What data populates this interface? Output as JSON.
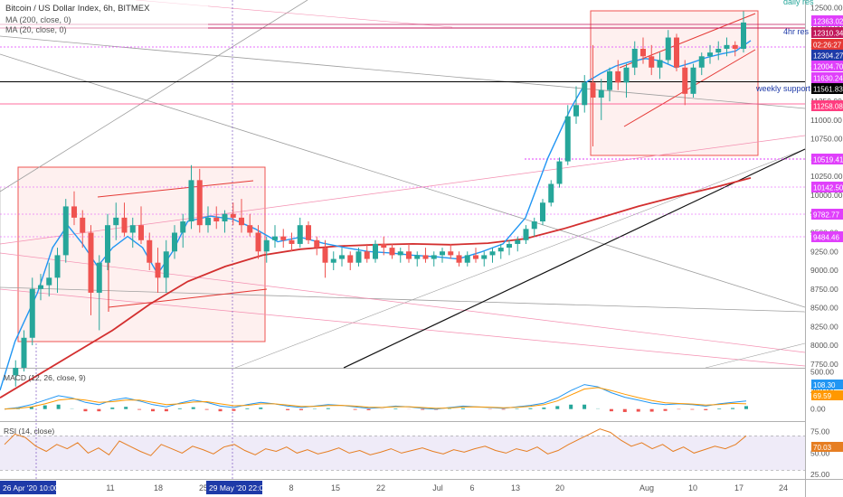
{
  "header": {
    "symbol_line": "Bitcoin / US Dollar Index, 6h, BITMEX",
    "ma200_label": "MA (200, close, 0)",
    "ma20_label": "MA (20, close, 0)"
  },
  "annotations": {
    "daily_res": "daily res",
    "hr4_res": "4hr res",
    "weekly_support": "weekly support"
  },
  "chart_data": {
    "type": "candlestick",
    "price_axis": {
      "ticks": [
        12500,
        12250,
        12000,
        11750,
        11500,
        11250,
        11000,
        10750,
        10500,
        10250,
        10000,
        9750,
        9500,
        9250,
        9000,
        8750,
        8500,
        8250,
        8000,
        7750
      ],
      "tick_labels": [
        "12500.00",
        "12250.00",
        "12000.00",
        "11750.00",
        "11500.00",
        "11250.00",
        "11000.00",
        "10750.00",
        "10500.00",
        "10250.00",
        "10000.00",
        "9750.00",
        "9500.00",
        "9250.00",
        "9000.00",
        "8750.00",
        "8500.00",
        "8250.00",
        "8000.00",
        "7750.00"
      ],
      "ylim": [
        7700,
        12600
      ]
    },
    "time_axis": {
      "labels": [
        "11",
        "18",
        "25",
        "8",
        "15",
        "22",
        "Jul",
        "6",
        "13",
        "20",
        "Aug",
        "10",
        "17",
        "24"
      ],
      "highlights": [
        {
          "label": "26 Apr '20  10:00"
        },
        {
          "label": "29 May '20  22:00"
        }
      ]
    },
    "price_tags": [
      {
        "value": "12363.02",
        "color": "#e040fb"
      },
      {
        "value": "12310.34",
        "color": "#c2185b"
      },
      {
        "value": "02:26:27",
        "color": "#e53935"
      },
      {
        "value": "12304.27",
        "color": "#1e3aa8"
      },
      {
        "value": "12004.70",
        "color": "#e040fb"
      },
      {
        "value": "11630.24",
        "color": "#e040fb"
      },
      {
        "value": "11561.83",
        "color": "#000000"
      },
      {
        "value": "11258.08",
        "color": "#ff3d7f"
      },
      {
        "value": "10519.41",
        "color": "#e040fb"
      },
      {
        "value": "10142.50",
        "color": "#e040fb"
      },
      {
        "value": "9782.77",
        "color": "#e040fb"
      },
      {
        "value": "9484.46",
        "color": "#e040fb"
      }
    ],
    "series": [
      {
        "name": "MA (200, close, 0)",
        "color": "#d32f2f",
        "x": [
          0,
          5,
          10,
          15,
          20,
          25,
          30,
          35,
          40,
          45,
          50,
          55,
          60,
          65,
          70,
          75,
          80,
          85,
          90,
          95,
          100
        ],
        "values": [
          7300,
          7600,
          7900,
          8200,
          8550,
          8850,
          9050,
          9200,
          9280,
          9320,
          9340,
          9350,
          9340,
          9360,
          9420,
          9550,
          9700,
          9850,
          9980,
          10100,
          10230
        ]
      },
      {
        "name": "MA (20, close, 0)",
        "color": "#2196f3",
        "x": [
          0,
          2,
          5,
          7,
          9,
          11,
          13,
          15,
          17,
          19,
          21,
          23,
          25,
          28,
          31,
          34,
          37,
          40,
          43,
          46,
          49,
          52,
          55,
          58,
          61,
          64,
          67,
          70,
          73,
          76,
          78,
          80,
          82,
          84,
          86,
          88,
          90,
          92,
          94,
          96,
          98,
          100
        ],
        "values": [
          7400,
          8050,
          8700,
          9300,
          9600,
          9350,
          9050,
          9300,
          9450,
          9300,
          8950,
          9250,
          9650,
          9720,
          9680,
          9550,
          9380,
          9440,
          9360,
          9300,
          9250,
          9230,
          9200,
          9180,
          9150,
          9240,
          9350,
          9700,
          10500,
          11150,
          11500,
          11620,
          11720,
          11780,
          11820,
          11790,
          11700,
          11760,
          11830,
          11880,
          11920,
          12060
        ]
      }
    ],
    "candles": [
      {
        "x": 1,
        "o": 7600,
        "h": 7800,
        "l": 7450,
        "c": 7700
      },
      {
        "x": 2,
        "o": 7700,
        "h": 8200,
        "l": 7650,
        "c": 8100
      },
      {
        "x": 3,
        "o": 8100,
        "h": 8900,
        "l": 8000,
        "c": 8750
      },
      {
        "x": 4,
        "o": 8750,
        "h": 8950,
        "l": 8600,
        "c": 8800
      },
      {
        "x": 5,
        "o": 8800,
        "h": 9100,
        "l": 8650,
        "c": 8900
      },
      {
        "x": 6,
        "o": 8900,
        "h": 9300,
        "l": 8700,
        "c": 9200
      },
      {
        "x": 7,
        "o": 9200,
        "h": 9950,
        "l": 9100,
        "c": 9850
      },
      {
        "x": 8,
        "o": 9850,
        "h": 10050,
        "l": 9600,
        "c": 9700
      },
      {
        "x": 9,
        "o": 9700,
        "h": 9800,
        "l": 9300,
        "c": 9500
      },
      {
        "x": 10,
        "o": 9500,
        "h": 9600,
        "l": 8400,
        "c": 8700
      },
      {
        "x": 11,
        "o": 8700,
        "h": 9200,
        "l": 8200,
        "c": 9100
      },
      {
        "x": 12,
        "o": 9100,
        "h": 9750,
        "l": 9000,
        "c": 9600
      },
      {
        "x": 13,
        "o": 9600,
        "h": 9900,
        "l": 9400,
        "c": 9700
      },
      {
        "x": 14,
        "o": 9700,
        "h": 9900,
        "l": 9450,
        "c": 9500
      },
      {
        "x": 15,
        "o": 9500,
        "h": 9700,
        "l": 9300,
        "c": 9600
      },
      {
        "x": 16,
        "o": 9600,
        "h": 9850,
        "l": 9350,
        "c": 9400
      },
      {
        "x": 17,
        "o": 9400,
        "h": 9500,
        "l": 9000,
        "c": 9100
      },
      {
        "x": 18,
        "o": 9100,
        "h": 9300,
        "l": 8700,
        "c": 8900
      },
      {
        "x": 19,
        "o": 8900,
        "h": 9400,
        "l": 8700,
        "c": 9250
      },
      {
        "x": 20,
        "o": 9250,
        "h": 9600,
        "l": 9150,
        "c": 9500
      },
      {
        "x": 21,
        "o": 9500,
        "h": 9750,
        "l": 9300,
        "c": 9650
      },
      {
        "x": 22,
        "o": 9650,
        "h": 10400,
        "l": 9550,
        "c": 10200
      },
      {
        "x": 23,
        "o": 10200,
        "h": 10350,
        "l": 9500,
        "c": 9600
      },
      {
        "x": 24,
        "o": 9600,
        "h": 9850,
        "l": 9500,
        "c": 9700
      },
      {
        "x": 25,
        "o": 9700,
        "h": 9850,
        "l": 9550,
        "c": 9650
      },
      {
        "x": 26,
        "o": 9650,
        "h": 9800,
        "l": 9500,
        "c": 9750
      },
      {
        "x": 27,
        "o": 9750,
        "h": 9900,
        "l": 9600,
        "c": 9700
      },
      {
        "x": 28,
        "o": 9700,
        "h": 9950,
        "l": 9500,
        "c": 9600
      },
      {
        "x": 29,
        "o": 9600,
        "h": 9750,
        "l": 9450,
        "c": 9500
      },
      {
        "x": 30,
        "o": 9500,
        "h": 9600,
        "l": 9150,
        "c": 9250
      },
      {
        "x": 31,
        "o": 9250,
        "h": 9450,
        "l": 9100,
        "c": 9400
      },
      {
        "x": 32,
        "o": 9400,
        "h": 9600,
        "l": 9300,
        "c": 9450
      },
      {
        "x": 33,
        "o": 9450,
        "h": 9550,
        "l": 9300,
        "c": 9400
      },
      {
        "x": 34,
        "o": 9400,
        "h": 9500,
        "l": 9250,
        "c": 9350
      },
      {
        "x": 35,
        "o": 9350,
        "h": 9700,
        "l": 9300,
        "c": 9600
      },
      {
        "x": 36,
        "o": 9600,
        "h": 9650,
        "l": 9350,
        "c": 9400
      },
      {
        "x": 37,
        "o": 9400,
        "h": 9450,
        "l": 9200,
        "c": 9300
      },
      {
        "x": 38,
        "o": 9300,
        "h": 9400,
        "l": 8900,
        "c": 9100
      },
      {
        "x": 39,
        "o": 9100,
        "h": 9250,
        "l": 9000,
        "c": 9150
      },
      {
        "x": 40,
        "o": 9150,
        "h": 9300,
        "l": 9050,
        "c": 9200
      },
      {
        "x": 41,
        "o": 9200,
        "h": 9250,
        "l": 9000,
        "c": 9100
      },
      {
        "x": 42,
        "o": 9100,
        "h": 9300,
        "l": 9050,
        "c": 9250
      },
      {
        "x": 43,
        "o": 9250,
        "h": 9350,
        "l": 9100,
        "c": 9150
      },
      {
        "x": 44,
        "o": 9150,
        "h": 9400,
        "l": 9100,
        "c": 9350
      },
      {
        "x": 45,
        "o": 9350,
        "h": 9450,
        "l": 9200,
        "c": 9300
      },
      {
        "x": 46,
        "o": 9300,
        "h": 9350,
        "l": 9150,
        "c": 9200
      },
      {
        "x": 47,
        "o": 9200,
        "h": 9300,
        "l": 9100,
        "c": 9250
      },
      {
        "x": 48,
        "o": 9250,
        "h": 9350,
        "l": 9100,
        "c": 9150
      },
      {
        "x": 49,
        "o": 9150,
        "h": 9250,
        "l": 9050,
        "c": 9200
      },
      {
        "x": 50,
        "o": 9200,
        "h": 9300,
        "l": 9100,
        "c": 9150
      },
      {
        "x": 51,
        "o": 9150,
        "h": 9250,
        "l": 9050,
        "c": 9200
      },
      {
        "x": 52,
        "o": 9200,
        "h": 9300,
        "l": 9100,
        "c": 9250
      },
      {
        "x": 53,
        "o": 9250,
        "h": 9350,
        "l": 9150,
        "c": 9200
      },
      {
        "x": 54,
        "o": 9200,
        "h": 9250,
        "l": 9050,
        "c": 9100
      },
      {
        "x": 55,
        "o": 9100,
        "h": 9250,
        "l": 9050,
        "c": 9200
      },
      {
        "x": 56,
        "o": 9200,
        "h": 9300,
        "l": 9100,
        "c": 9150
      },
      {
        "x": 57,
        "o": 9150,
        "h": 9250,
        "l": 9050,
        "c": 9200
      },
      {
        "x": 58,
        "o": 9200,
        "h": 9300,
        "l": 9100,
        "c": 9250
      },
      {
        "x": 59,
        "o": 9250,
        "h": 9350,
        "l": 9150,
        "c": 9300
      },
      {
        "x": 60,
        "o": 9300,
        "h": 9400,
        "l": 9200,
        "c": 9350
      },
      {
        "x": 61,
        "o": 9350,
        "h": 9450,
        "l": 9250,
        "c": 9400
      },
      {
        "x": 62,
        "o": 9400,
        "h": 9600,
        "l": 9350,
        "c": 9550
      },
      {
        "x": 63,
        "o": 9550,
        "h": 9700,
        "l": 9450,
        "c": 9650
      },
      {
        "x": 64,
        "o": 9650,
        "h": 9950,
        "l": 9600,
        "c": 9900
      },
      {
        "x": 65,
        "o": 9900,
        "h": 10200,
        "l": 9850,
        "c": 10150
      },
      {
        "x": 66,
        "o": 10150,
        "h": 10500,
        "l": 10100,
        "c": 10450
      },
      {
        "x": 67,
        "o": 10450,
        "h": 11200,
        "l": 10400,
        "c": 11050
      },
      {
        "x": 68,
        "o": 11050,
        "h": 11450,
        "l": 10950,
        "c": 11200
      },
      {
        "x": 69,
        "o": 11200,
        "h": 11600,
        "l": 11100,
        "c": 11500
      },
      {
        "x": 70,
        "o": 11500,
        "h": 12000,
        "l": 10650,
        "c": 11300
      },
      {
        "x": 71,
        "o": 11300,
        "h": 11550,
        "l": 11000,
        "c": 11400
      },
      {
        "x": 72,
        "o": 11400,
        "h": 11700,
        "l": 11250,
        "c": 11650
      },
      {
        "x": 73,
        "o": 11650,
        "h": 11800,
        "l": 11400,
        "c": 11500
      },
      {
        "x": 74,
        "o": 11500,
        "h": 11750,
        "l": 11300,
        "c": 11700
      },
      {
        "x": 75,
        "o": 11700,
        "h": 12050,
        "l": 11600,
        "c": 11950
      },
      {
        "x": 76,
        "o": 11950,
        "h": 12100,
        "l": 11750,
        "c": 11850
      },
      {
        "x": 77,
        "o": 11850,
        "h": 12000,
        "l": 11600,
        "c": 11700
      },
      {
        "x": 78,
        "o": 11700,
        "h": 11900,
        "l": 11550,
        "c": 11800
      },
      {
        "x": 79,
        "o": 11800,
        "h": 12200,
        "l": 11750,
        "c": 12100
      },
      {
        "x": 80,
        "o": 12100,
        "h": 12150,
        "l": 11650,
        "c": 11700
      },
      {
        "x": 81,
        "o": 11700,
        "h": 11800,
        "l": 11200,
        "c": 11350
      },
      {
        "x": 82,
        "o": 11350,
        "h": 11750,
        "l": 11300,
        "c": 11700
      },
      {
        "x": 83,
        "o": 11700,
        "h": 11900,
        "l": 11600,
        "c": 11850
      },
      {
        "x": 84,
        "o": 11850,
        "h": 12000,
        "l": 11750,
        "c": 11900
      },
      {
        "x": 85,
        "o": 11900,
        "h": 12050,
        "l": 11800,
        "c": 11950
      },
      {
        "x": 86,
        "o": 11950,
        "h": 12100,
        "l": 11850,
        "c": 12000
      },
      {
        "x": 87,
        "o": 12000,
        "h": 12050,
        "l": 11850,
        "c": 11950
      },
      {
        "x": 88,
        "o": 11950,
        "h": 12450,
        "l": 11900,
        "c": 12300
      }
    ],
    "macd": {
      "label": "MACD (12, 26, close, 9)",
      "ticks": [
        500,
        250,
        0
      ],
      "tick_labels": [
        "500.00",
        "250.00",
        "0.00"
      ],
      "ylim": [
        -150,
        520
      ],
      "current_values": [
        "108.30",
        "69.59"
      ],
      "line": [
        0,
        20,
        60,
        120,
        180,
        150,
        90,
        60,
        120,
        150,
        110,
        60,
        30,
        80,
        120,
        90,
        40,
        20,
        60,
        90,
        70,
        40,
        20,
        40,
        60,
        50,
        30,
        10,
        20,
        40,
        30,
        10,
        0,
        20,
        40,
        30,
        20,
        10,
        30,
        50,
        80,
        150,
        250,
        330,
        300,
        220,
        160,
        120,
        80,
        60,
        70,
        60,
        40,
        70,
        90,
        110
      ],
      "signal": [
        0,
        10,
        30,
        70,
        120,
        140,
        120,
        90,
        100,
        120,
        120,
        90,
        60,
        70,
        95,
        100,
        70,
        45,
        50,
        70,
        70,
        55,
        35,
        35,
        48,
        50,
        40,
        25,
        22,
        32,
        32,
        20,
        10,
        15,
        28,
        30,
        25,
        18,
        24,
        38,
        60,
        110,
        190,
        270,
        290,
        250,
        200,
        155,
        115,
        85,
        75,
        68,
        55,
        62,
        76,
        70
      ]
    },
    "rsi": {
      "label": "RSI (14, close)",
      "ticks": [
        75,
        50,
        25
      ],
      "tick_labels": [
        "75.00",
        "50.00",
        "25.00"
      ],
      "ylim": [
        20,
        85
      ],
      "current_value": "70.03",
      "band": [
        30,
        70
      ],
      "values": [
        60,
        72,
        68,
        58,
        52,
        60,
        55,
        62,
        50,
        56,
        48,
        64,
        58,
        52,
        47,
        60,
        55,
        50,
        58,
        54,
        49,
        57,
        60,
        53,
        48,
        55,
        52,
        57,
        50,
        54,
        49,
        52,
        56,
        50,
        53,
        48,
        51,
        55,
        50,
        53,
        56,
        52,
        49,
        54,
        51,
        55,
        58,
        53,
        50,
        55,
        52,
        57,
        49,
        53,
        60,
        66,
        72,
        78,
        74,
        65,
        58,
        62,
        55,
        60,
        52,
        57,
        50,
        54,
        58,
        55,
        60,
        70
      ]
    }
  }
}
